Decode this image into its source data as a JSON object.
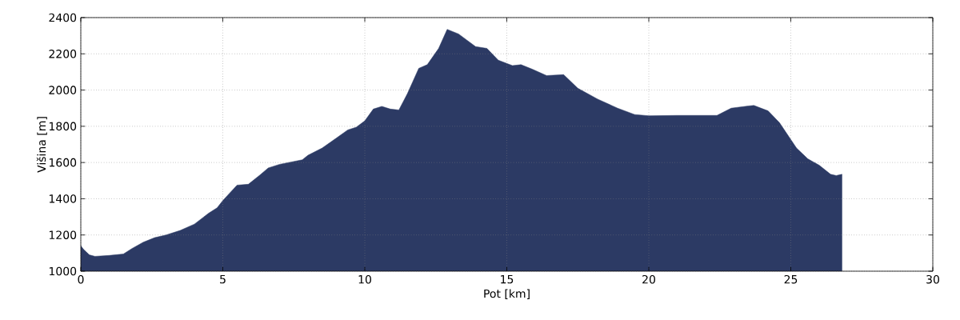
{
  "chart_data": {
    "type": "area",
    "xlabel": "Pot [km]",
    "ylabel": "Višina [m]",
    "color": "#2c3a64",
    "grid": true,
    "xlim": [
      0,
      30
    ],
    "ylim": [
      1000,
      2400
    ],
    "xticks": [
      0,
      5,
      10,
      15,
      20,
      25,
      30
    ],
    "yticks": [
      1000,
      1200,
      1400,
      1600,
      1800,
      2000,
      2200,
      2400
    ],
    "x": [
      0,
      0.1,
      0.3,
      0.5,
      1.0,
      1.5,
      1.8,
      2.2,
      2.6,
      3.0,
      3.5,
      4.0,
      4.5,
      4.8,
      5.0,
      5.5,
      5.9,
      6.3,
      6.6,
      7.0,
      7.8,
      8.0,
      8.5,
      9.0,
      9.4,
      9.7,
      10.0,
      10.3,
      10.6,
      10.9,
      11.2,
      11.5,
      11.9,
      12.2,
      12.6,
      12.9,
      13.3,
      13.9,
      14.3,
      14.7,
      15.2,
      15.5,
      15.9,
      16.4,
      17.0,
      17.5,
      18.2,
      18.9,
      19.5,
      20.0,
      21.0,
      22.4,
      22.9,
      23.5,
      23.7,
      24.2,
      24.6,
      25.2,
      25.6,
      26.0,
      26.4,
      26.6,
      26.8
    ],
    "values": [
      1140,
      1120,
      1090,
      1082,
      1087,
      1095,
      1125,
      1160,
      1185,
      1200,
      1225,
      1260,
      1320,
      1350,
      1390,
      1475,
      1480,
      1530,
      1570,
      1590,
      1615,
      1640,
      1680,
      1735,
      1780,
      1795,
      1830,
      1895,
      1910,
      1895,
      1890,
      1980,
      2120,
      2140,
      2230,
      2335,
      2310,
      2240,
      2230,
      2165,
      2135,
      2140,
      2115,
      2080,
      2085,
      2010,
      1950,
      1900,
      1865,
      1858,
      1860,
      1860,
      1900,
      1912,
      1915,
      1885,
      1820,
      1680,
      1620,
      1585,
      1535,
      1528,
      1535
    ]
  }
}
